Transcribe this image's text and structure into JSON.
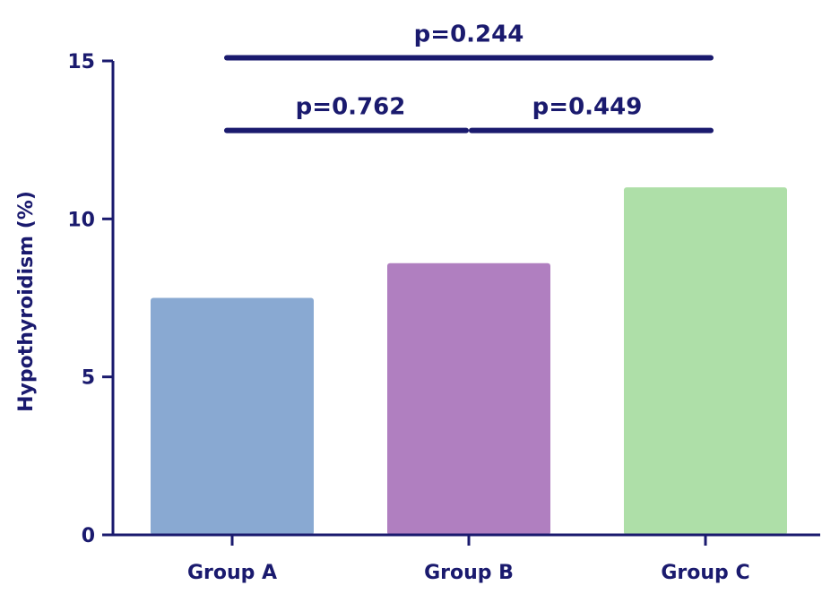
{
  "chart_data": {
    "type": "bar",
    "categories": [
      "Group A",
      "Group B",
      "Group C"
    ],
    "values": [
      7.5,
      8.6,
      11.0
    ],
    "colors": [
      "#89a9d2",
      "#b07fc0",
      "#aedfa8"
    ],
    "axis_color": "#1a1a6e",
    "ylabel": "Hypothyroidism (%)",
    "xlabel": "",
    "ylim": [
      0,
      15
    ],
    "yticks": [
      0,
      5,
      10,
      15
    ],
    "ytick_labels": [
      "0",
      "5",
      "10",
      "15"
    ],
    "grid": false,
    "legend": "none",
    "comparisons": [
      {
        "from": 0,
        "to": 2,
        "y": 15.1,
        "label": "p=0.244"
      },
      {
        "from": 0,
        "to": 1,
        "y": 12.8,
        "label": "p=0.762"
      },
      {
        "from": 1,
        "to": 2,
        "y": 12.8,
        "label": "p=0.449"
      }
    ]
  }
}
